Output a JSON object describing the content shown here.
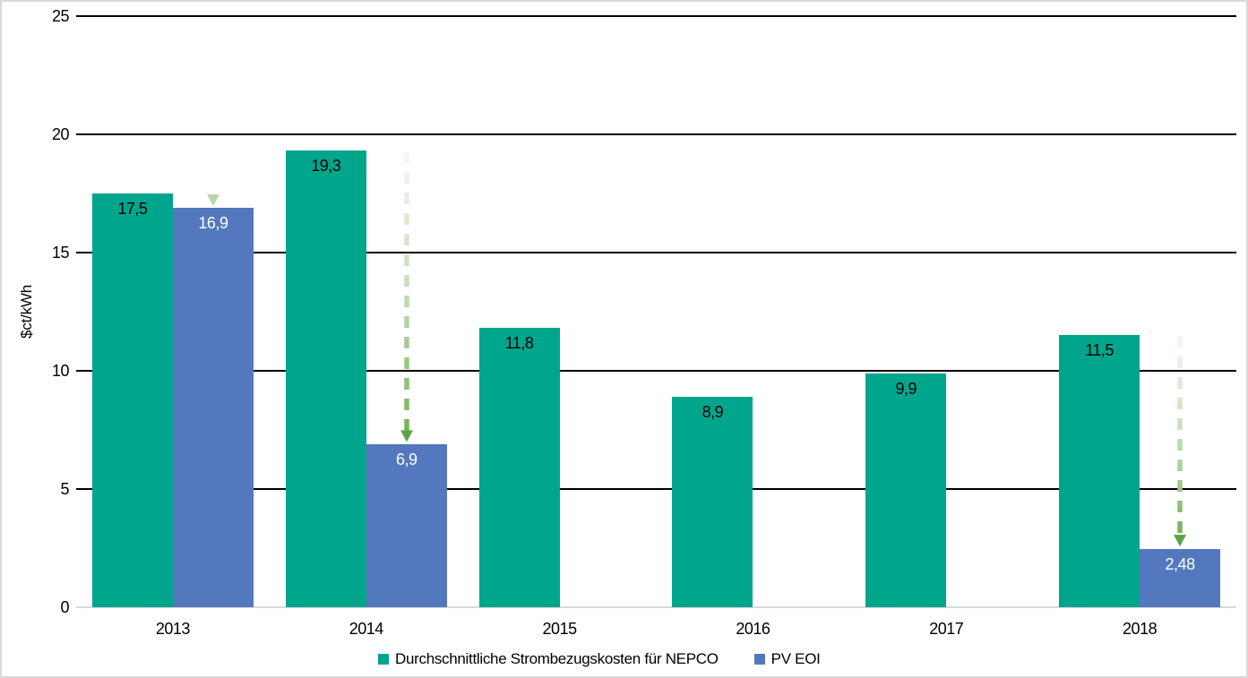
{
  "chart_data": {
    "type": "bar",
    "title": "",
    "xlabel": "",
    "ylabel": "$ct/kWh",
    "ylim": [
      0,
      25
    ],
    "yticks": [
      0,
      5,
      10,
      15,
      20,
      25
    ],
    "grid": "horizontal",
    "legend_position": "bottom",
    "categories": [
      "2013",
      "2014",
      "2015",
      "2016",
      "2017",
      "2018"
    ],
    "series": [
      {
        "name": "Durchschnittliche Strombezugskosten für NEPCO",
        "color": "#00A68C",
        "values": [
          17.5,
          19.3,
          11.8,
          8.9,
          9.9,
          11.5
        ],
        "labels": [
          "17,5",
          "19,3",
          "11,8",
          "8,9",
          "9,9",
          "11,5"
        ]
      },
      {
        "name": "PV EOI",
        "color": "#5478BD",
        "values": [
          16.9,
          6.9,
          null,
          null,
          null,
          2.48
        ],
        "labels": [
          "16,9",
          "6,9",
          null,
          null,
          null,
          "2,48"
        ]
      }
    ],
    "annotations": [
      {
        "type": "arrow-down",
        "category": "2013",
        "from_value": 17.5,
        "to_value": 16.9
      },
      {
        "type": "arrow-down",
        "category": "2014",
        "from_value": 19.3,
        "to_value": 6.9
      },
      {
        "type": "arrow-down",
        "category": "2018",
        "from_value": 11.5,
        "to_value": 2.48
      }
    ],
    "colors": {
      "gridline": "#000000",
      "baseline": "#d9d9d9",
      "arrow_gradient_top": "#f4f8f2",
      "arrow_gradient_mid": "#c2dbb4",
      "arrow_gradient_bottom": "#6fae4e",
      "arrow_head": "#5aa543",
      "arrow_head_short": "#b7d7a8",
      "label_on_teal": "#000000",
      "label_on_blue": "#ffffff"
    }
  }
}
